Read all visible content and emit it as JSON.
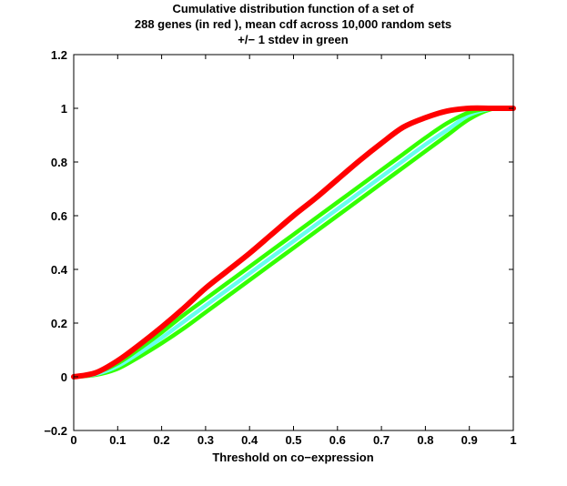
{
  "chart_data": {
    "type": "line",
    "title": [
      "Cumulative distribution function of a set of",
      "288 genes (in red ), mean cdf across 10,000 random sets",
      "+/− 1 stdev in green"
    ],
    "xlabel": "Threshold on co−expression",
    "ylabel": "",
    "xlim": [
      0,
      1
    ],
    "ylim": [
      -0.2,
      1.2
    ],
    "xticks": [
      0,
      0.1,
      0.2,
      0.3,
      0.4,
      0.5,
      0.6,
      0.7,
      0.8,
      0.9,
      1
    ],
    "xtick_labels": [
      "0",
      "0.1",
      "0.2",
      "0.3",
      "0.4",
      "0.5",
      "0.6",
      "0.7",
      "0.8",
      "0.9",
      "1"
    ],
    "yticks": [
      -0.2,
      0,
      0.2,
      0.4,
      0.6,
      0.8,
      1,
      1.2
    ],
    "ytick_labels": [
      "−0.2",
      "0",
      "0.2",
      "0.4",
      "0.6",
      "0.8",
      "1",
      "1.2"
    ],
    "grid": false,
    "x": [
      0,
      0.05,
      0.1,
      0.15,
      0.2,
      0.25,
      0.3,
      0.35,
      0.4,
      0.45,
      0.5,
      0.55,
      0.6,
      0.65,
      0.7,
      0.75,
      0.8,
      0.85,
      0.9,
      0.95,
      1
    ],
    "series": [
      {
        "color": "#33ff00",
        "values": [
          0,
          0.007,
          0.03,
          0.075,
          0.125,
          0.18,
          0.24,
          0.3,
          0.36,
          0.42,
          0.48,
          0.54,
          0.6,
          0.66,
          0.72,
          0.78,
          0.84,
          0.9,
          0.96,
          0.997,
          1
        ]
      },
      {
        "color": "#66ffee",
        "values": [
          0,
          0.01,
          0.04,
          0.09,
          0.145,
          0.205,
          0.265,
          0.325,
          0.385,
          0.445,
          0.505,
          0.565,
          0.625,
          0.685,
          0.745,
          0.805,
          0.865,
          0.92,
          0.975,
          0.999,
          1
        ]
      },
      {
        "color": "#33ff00",
        "values": [
          0,
          0.015,
          0.05,
          0.105,
          0.165,
          0.23,
          0.29,
          0.35,
          0.41,
          0.47,
          0.53,
          0.59,
          0.65,
          0.71,
          0.77,
          0.83,
          0.89,
          0.945,
          0.985,
          1,
          1
        ]
      },
      {
        "color": "#ff0000",
        "values": [
          0,
          0.015,
          0.06,
          0.12,
          0.185,
          0.255,
          0.33,
          0.395,
          0.46,
          0.53,
          0.6,
          0.665,
          0.735,
          0.805,
          0.87,
          0.93,
          0.965,
          0.99,
          1,
          1,
          1
        ]
      }
    ]
  }
}
